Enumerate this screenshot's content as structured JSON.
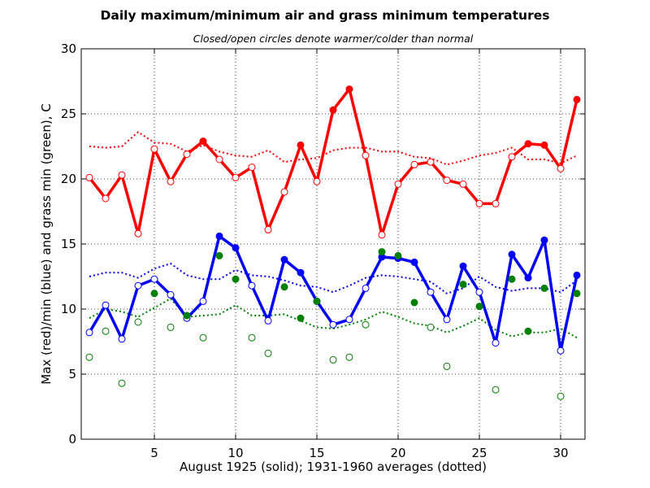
{
  "chart_data": {
    "type": "line",
    "title": "Daily maximum/minimum air and grass minimum temperatures",
    "subtitle": "Closed/open circles denote warmer/colder than normal",
    "xlabel": "August 1925 (solid);  1931-1960 averages (dotted)",
    "ylabel": "Max (red)/min (blue) and grass min (green), C",
    "xlim": [
      0.5,
      31.5
    ],
    "ylim": [
      0,
      30
    ],
    "xticks": [
      5,
      10,
      15,
      20,
      25,
      30
    ],
    "yticks": [
      0,
      5,
      10,
      15,
      20,
      25,
      30
    ],
    "grid": true,
    "x": [
      1,
      2,
      3,
      4,
      5,
      6,
      7,
      8,
      9,
      10,
      11,
      12,
      13,
      14,
      15,
      16,
      17,
      18,
      19,
      20,
      21,
      22,
      23,
      24,
      25,
      26,
      27,
      28,
      29,
      30,
      31
    ],
    "series": [
      {
        "key": "max_actual",
        "style": "solid",
        "color": "#ff0000",
        "values": [
          20.1,
          18.5,
          20.3,
          15.8,
          22.3,
          19.8,
          21.9,
          22.9,
          21.5,
          20.1,
          20.9,
          16.1,
          19.0,
          22.6,
          19.8,
          25.3,
          26.9,
          21.8,
          15.7,
          19.6,
          21.1,
          21.3,
          19.9,
          19.6,
          18.1,
          18.1,
          21.7,
          22.7,
          22.6,
          20.8,
          26.1
        ]
      },
      {
        "key": "max_normal",
        "style": "dotted",
        "color": "#ff0000",
        "values": [
          22.5,
          22.4,
          22.5,
          23.6,
          22.8,
          22.7,
          22.1,
          22.6,
          22.1,
          21.8,
          21.7,
          22.2,
          21.3,
          21.5,
          21.6,
          22.2,
          22.4,
          22.4,
          22.1,
          22.1,
          21.7,
          21.6,
          21.1,
          21.4,
          21.8,
          22.0,
          22.4,
          21.5,
          21.5,
          21.2,
          21.8
        ]
      },
      {
        "key": "min_actual",
        "style": "solid",
        "color": "#0000ff",
        "values": [
          8.2,
          10.3,
          7.7,
          11.8,
          12.3,
          11.1,
          9.3,
          10.6,
          15.6,
          14.7,
          11.8,
          9.1,
          13.8,
          12.8,
          10.6,
          8.8,
          9.2,
          11.6,
          14.0,
          13.9,
          13.6,
          11.3,
          9.2,
          13.3,
          11.3,
          7.4,
          14.2,
          12.4,
          15.3,
          6.8,
          12.6
        ]
      },
      {
        "key": "min_normal",
        "style": "dotted",
        "color": "#0000ff",
        "values": [
          12.5,
          12.8,
          12.8,
          12.4,
          13.1,
          13.5,
          12.6,
          12.3,
          12.3,
          13.0,
          12.6,
          12.5,
          12.2,
          11.8,
          11.7,
          11.3,
          11.8,
          12.4,
          12.6,
          12.5,
          12.3,
          12.1,
          11.2,
          11.6,
          12.5,
          11.7,
          11.4,
          11.6,
          11.6,
          11.3,
          12.2
        ]
      },
      {
        "key": "grass_actual",
        "style": "markers",
        "color": "#008000",
        "values": [
          6.3,
          8.3,
          4.3,
          9.0,
          11.2,
          8.6,
          9.5,
          7.8,
          14.1,
          12.3,
          7.8,
          6.6,
          11.7,
          9.3,
          10.6,
          6.1,
          6.3,
          8.8,
          14.4,
          14.1,
          10.5,
          8.6,
          5.6,
          11.9,
          10.2,
          3.8,
          12.3,
          8.3,
          11.6,
          3.3,
          11.2
        ]
      },
      {
        "key": "grass_normal",
        "style": "dotted",
        "color": "#008000",
        "values": [
          9.3,
          10.0,
          9.8,
          9.4,
          10.1,
          10.8,
          9.4,
          9.5,
          9.6,
          10.3,
          9.5,
          9.5,
          9.6,
          9.1,
          8.6,
          8.5,
          8.8,
          9.2,
          9.8,
          9.4,
          8.9,
          8.7,
          8.2,
          8.7,
          9.3,
          8.4,
          7.9,
          8.2,
          8.2,
          8.5,
          7.8
        ]
      }
    ]
  }
}
